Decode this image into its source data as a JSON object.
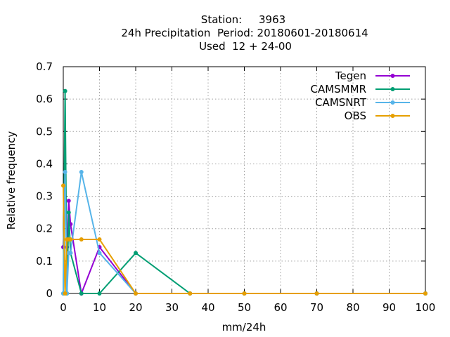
{
  "chart_data": {
    "type": "line",
    "title_lines": [
      "Station:     3963",
      "24h Precipitation  Period: 20180601-20180614",
      "Used  12 + 24-00"
    ],
    "xlabel": "mm/24h",
    "ylabel": "Relative frequency",
    "xlim": [
      0,
      100
    ],
    "ylim": [
      0,
      0.7
    ],
    "xticks": [
      0,
      10,
      20,
      30,
      40,
      50,
      60,
      70,
      80,
      90,
      100
    ],
    "yticks": [
      0,
      0.1,
      0.2,
      0.3,
      0.4,
      0.5,
      0.6,
      0.7
    ],
    "xtick_labels": [
      "0",
      "10",
      "20",
      "30",
      "40",
      "50",
      "60",
      "70",
      "80",
      "90",
      "100"
    ],
    "ytick_labels": [
      "0",
      "0.1",
      "0.2",
      "0.3",
      "0.4",
      "0.5",
      "0.6",
      "0.7"
    ],
    "grid": true,
    "legend_position": "top-right",
    "series": [
      {
        "name": "Tegen",
        "color": "#9400d3",
        "x": [
          0,
          0.5,
          1,
          1.5,
          2,
          5,
          10,
          20,
          35,
          50,
          70,
          100
        ],
        "y": [
          0.143,
          0.286,
          0.143,
          0.286,
          0.214,
          0,
          0.143,
          0,
          0,
          0,
          0,
          0
        ]
      },
      {
        "name": "CAMSMMR",
        "color": "#009e73",
        "x": [
          0,
          0.5,
          1,
          1.5,
          2,
          5,
          10,
          20,
          35,
          50,
          70,
          100
        ],
        "y": [
          0,
          0.625,
          0,
          0.25,
          0.125,
          0,
          0,
          0.125,
          0,
          0,
          0,
          0
        ]
      },
      {
        "name": "CAMSNRT",
        "color": "#56b4e9",
        "x": [
          0,
          0.5,
          1,
          1.5,
          2,
          5,
          10,
          20,
          35,
          50,
          70,
          100
        ],
        "y": [
          0,
          0.375,
          0,
          0.125,
          0.125,
          0.375,
          0.125,
          0,
          0,
          0,
          0,
          0
        ]
      },
      {
        "name": "OBS",
        "color": "#e69f00",
        "x": [
          0,
          0.5,
          1,
          1.5,
          2,
          5,
          10,
          20,
          35,
          50,
          70,
          100
        ],
        "y": [
          0.333,
          0,
          0.167,
          0.167,
          0.167,
          0.167,
          0.167,
          0,
          0,
          0,
          0,
          0
        ]
      }
    ]
  }
}
